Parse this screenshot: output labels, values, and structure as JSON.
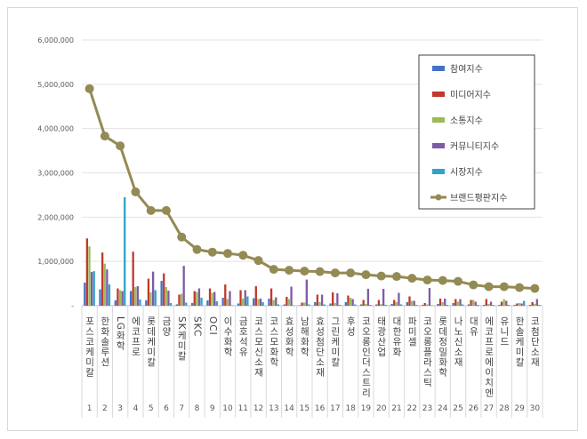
{
  "chart_data": {
    "type": "bar",
    "title": "",
    "xlabel": "",
    "ylabel": "",
    "ylim": [
      0,
      6000000
    ],
    "yticks": [
      "-",
      "1,000,000",
      "2,000,000",
      "3,000,000",
      "4,000,000",
      "5,000,000",
      "6,000,000"
    ],
    "ytick_values": [
      0,
      1000000,
      2000000,
      3000000,
      4000000,
      5000000,
      6000000
    ],
    "grid": true,
    "legend_position": "top-right",
    "ranks": [
      "1",
      "2",
      "3",
      "4",
      "5",
      "6",
      "7",
      "8",
      "9",
      "10",
      "11",
      "12",
      "13",
      "14",
      "15",
      "16",
      "17",
      "18",
      "19",
      "20",
      "21",
      "22",
      "23",
      "24",
      "25",
      "26",
      "27",
      "28",
      "29",
      "30"
    ],
    "categories": [
      "포스코케미칼",
      "한화솔루션",
      "LG화학",
      "에코프로",
      "롯데케미칼",
      "금양",
      "SK케미칼",
      "SKC",
      "OCI",
      "이수화학",
      "금호석유",
      "코스모신소재",
      "코스모화학",
      "효성화학",
      "남해화학",
      "효성첨단소재",
      "그린케미칼",
      "후성",
      "코오롱인더스트리",
      "태광산업",
      "대한유화",
      "파미셀",
      "코오롱플라스틱",
      "롯데정밀화학",
      "나노신소재",
      "대유",
      "에코프로에이치엔",
      "유니드",
      "한솔케미칼",
      "코첨단소재"
    ],
    "series": [
      {
        "name": "참여지수",
        "type": "bar",
        "color": "#4472c4",
        "values": [
          520000,
          370000,
          120000,
          330000,
          120000,
          560000,
          30000,
          60000,
          120000,
          180000,
          50000,
          170000,
          160000,
          30000,
          10000,
          80000,
          50000,
          80000,
          30000,
          30000,
          40000,
          80000,
          20000,
          40000,
          60000,
          30000,
          20000,
          20000,
          20000,
          20000
        ]
      },
      {
        "name": "미디어지수",
        "type": "bar",
        "color": "#c0392b",
        "values": [
          1520000,
          1200000,
          390000,
          1220000,
          610000,
          730000,
          250000,
          330000,
          390000,
          480000,
          350000,
          440000,
          390000,
          200000,
          70000,
          250000,
          300000,
          230000,
          130000,
          130000,
          130000,
          210000,
          60000,
          160000,
          150000,
          130000,
          150000,
          90000,
          50000,
          80000
        ]
      },
      {
        "name": "소통지수",
        "type": "bar",
        "color": "#9bbb59",
        "values": [
          1340000,
          950000,
          350000,
          420000,
          300000,
          420000,
          270000,
          310000,
          290000,
          150000,
          160000,
          150000,
          130000,
          150000,
          70000,
          80000,
          60000,
          180000,
          40000,
          40000,
          80000,
          110000,
          30000,
          80000,
          90000,
          130000,
          40000,
          150000,
          60000,
          40000
        ]
      },
      {
        "name": "커뮤니티지수",
        "type": "bar",
        "color": "#7d5ba6",
        "values": [
          760000,
          820000,
          330000,
          440000,
          770000,
          340000,
          900000,
          390000,
          310000,
          330000,
          350000,
          160000,
          190000,
          430000,
          590000,
          250000,
          280000,
          150000,
          380000,
          380000,
          290000,
          110000,
          400000,
          160000,
          150000,
          90000,
          90000,
          110000,
          50000,
          150000
        ]
      },
      {
        "name": "시장지수",
        "type": "bar",
        "color": "#31a3c6",
        "values": [
          780000,
          480000,
          2450000,
          140000,
          350000,
          60000,
          70000,
          180000,
          100000,
          10000,
          210000,
          80000,
          30000,
          10000,
          30000,
          30000,
          20000,
          30000,
          20000,
          20000,
          30000,
          20000,
          10000,
          20000,
          30000,
          20000,
          20000,
          20000,
          110000,
          20000
        ]
      },
      {
        "name": "브랜드평판지수",
        "type": "line",
        "color": "#948a54",
        "values": [
          4900000,
          3830000,
          3610000,
          2570000,
          2150000,
          2150000,
          1550000,
          1270000,
          1210000,
          1180000,
          1140000,
          1020000,
          820000,
          800000,
          780000,
          770000,
          740000,
          740000,
          700000,
          670000,
          660000,
          620000,
          580000,
          570000,
          550000,
          470000,
          430000,
          430000,
          410000,
          390000
        ]
      }
    ]
  }
}
